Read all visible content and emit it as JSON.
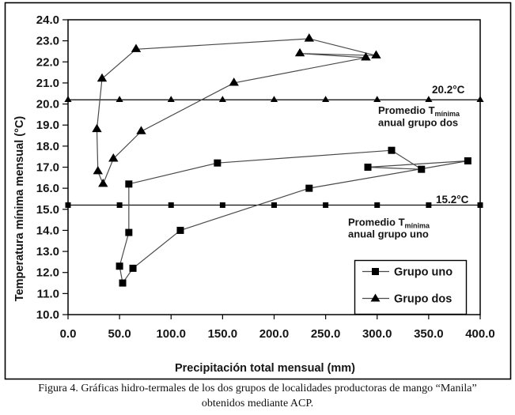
{
  "figure_caption": {
    "line1": "Figura 4. Gráficas hidro-termales de los dos grupos de localidades productoras de mango “Manila”",
    "line2": "obtenidos mediante ACP."
  },
  "colors": {
    "ink": "#151515",
    "frame": "#000000",
    "series_line": "#4a4a4a",
    "marker_fill": "#000000",
    "background": "#ffffff"
  },
  "chart_data": {
    "type": "line",
    "title": "",
    "xlabel": "Precipitación total mensual (mm)",
    "ylabel": "Temperatura mínima mensual (°C)",
    "xlim": [
      0,
      400
    ],
    "ylim": [
      10,
      24
    ],
    "grid": false,
    "x_tick_labels": [
      "0.0",
      "50.0",
      "100.0",
      "150.0",
      "200.0",
      "250.0",
      "300.0",
      "350.0",
      "400.0"
    ],
    "y_tick_labels": [
      "10.0",
      "11.0",
      "12.0",
      "13.0",
      "14.0",
      "15.0",
      "16.0",
      "17.0",
      "18.0",
      "19.0",
      "20.0",
      "21.0",
      "22.0",
      "23.0",
      "24.0"
    ],
    "series": [
      {
        "name": "Grupo uno",
        "marker": "square",
        "closed_loop": true,
        "points": [
          [
            59,
            16.2
          ],
          [
            145,
            17.2
          ],
          [
            314,
            17.8
          ],
          [
            343,
            16.9
          ],
          [
            291,
            17.0
          ],
          [
            388,
            17.3
          ],
          [
            234,
            16.0
          ],
          [
            109,
            14.0
          ],
          [
            63,
            12.2
          ],
          [
            53,
            11.5
          ],
          [
            50,
            12.3
          ],
          [
            59,
            13.9
          ]
        ]
      },
      {
        "name": "Grupo dos",
        "marker": "triangle",
        "closed_loop": true,
        "points": [
          [
            29,
            16.8
          ],
          [
            28,
            18.8
          ],
          [
            33,
            21.2
          ],
          [
            66,
            22.6
          ],
          [
            234,
            23.1
          ],
          [
            299,
            22.3
          ],
          [
            225,
            22.4
          ],
          [
            289,
            22.2
          ],
          [
            161,
            21.0
          ],
          [
            71,
            18.7
          ],
          [
            44,
            17.4
          ],
          [
            34,
            16.2
          ]
        ]
      }
    ],
    "reference_lines": [
      {
        "value": 20.2,
        "label": "20.2°C",
        "marker": "triangle",
        "marker_x_step": 50,
        "annotation": {
          "main": "Promedio T",
          "subscript": "mínima",
          "line2": "anual grupo dos"
        }
      },
      {
        "value": 15.2,
        "label": "15.2°C",
        "marker": "square",
        "marker_x_step": 50,
        "annotation": {
          "main": "Promedio T",
          "subscript": "mínima",
          "line2": "anual grupo uno"
        }
      }
    ],
    "legend": {
      "position": "inside bottom-right",
      "entries": [
        {
          "label": "Grupo uno",
          "marker": "square"
        },
        {
          "label": "Grupo dos",
          "marker": "triangle"
        }
      ]
    }
  }
}
